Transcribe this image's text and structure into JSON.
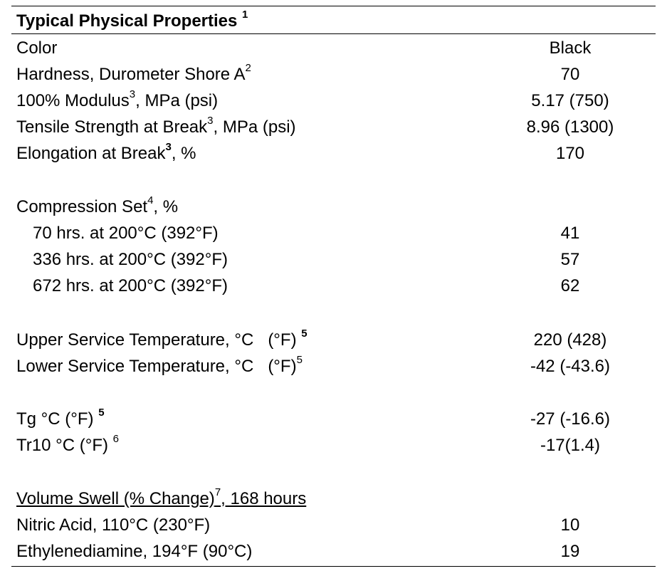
{
  "header": {
    "title": "Typical Physical Properties",
    "title_sup": "1"
  },
  "rows": {
    "color": {
      "label": "Color",
      "value": "Black"
    },
    "hardness": {
      "label": "Hardness, Durometer Shore A",
      "sup": "2",
      "value": "70"
    },
    "modulus": {
      "label_a": "100% Modulus",
      "sup": "3",
      "label_b": ", MPa (psi)",
      "value": "5.17 (750)"
    },
    "tensile": {
      "label_a": "Tensile Strength at Break",
      "sup": "3",
      "label_b": ", MPa (psi)",
      "value": "8.96 (1300)"
    },
    "elongation": {
      "label_a": "Elongation at Break",
      "sup": "3",
      "label_b": ", %",
      "value": "170"
    },
    "compression_set": {
      "label_a": "Compression Set",
      "sup": "4",
      "label_b": ", %"
    },
    "cs_70": {
      "label": "70 hrs. at 200°C (392°F)",
      "value": "41"
    },
    "cs_336": {
      "label": "336 hrs. at 200°C (392°F)",
      "value": "57"
    },
    "cs_672": {
      "label": "672 hrs. at 200°C (392°F)",
      "value": "62"
    },
    "upper_temp": {
      "label_a": "Upper Service Temperature, °C",
      "label_b": "(°F)",
      "sup": "5",
      "value": "220 (428)"
    },
    "lower_temp": {
      "label_a": "Lower Service Temperature, °C",
      "label_b": "(°F)",
      "sup": "5",
      "value": "-42 (-43.6)"
    },
    "tg": {
      "label": "Tg °C (°F)",
      "sup": "5",
      "value": "-27 (-16.6)"
    },
    "tr10": {
      "label": "Tr10 °C (°F)",
      "sup": "6",
      "value": "-17(1.4)"
    },
    "volume_swell": {
      "label_a": "Volume Swell (% Change)",
      "sup": "7",
      "label_b": ", 168 hours"
    },
    "nitric": {
      "label": "Nitric Acid, 110°C (230°F)",
      "value": "10"
    },
    "ethylenediamine": {
      "label": "Ethylenediamine, 194°F (90°C)",
      "value": "19"
    }
  }
}
